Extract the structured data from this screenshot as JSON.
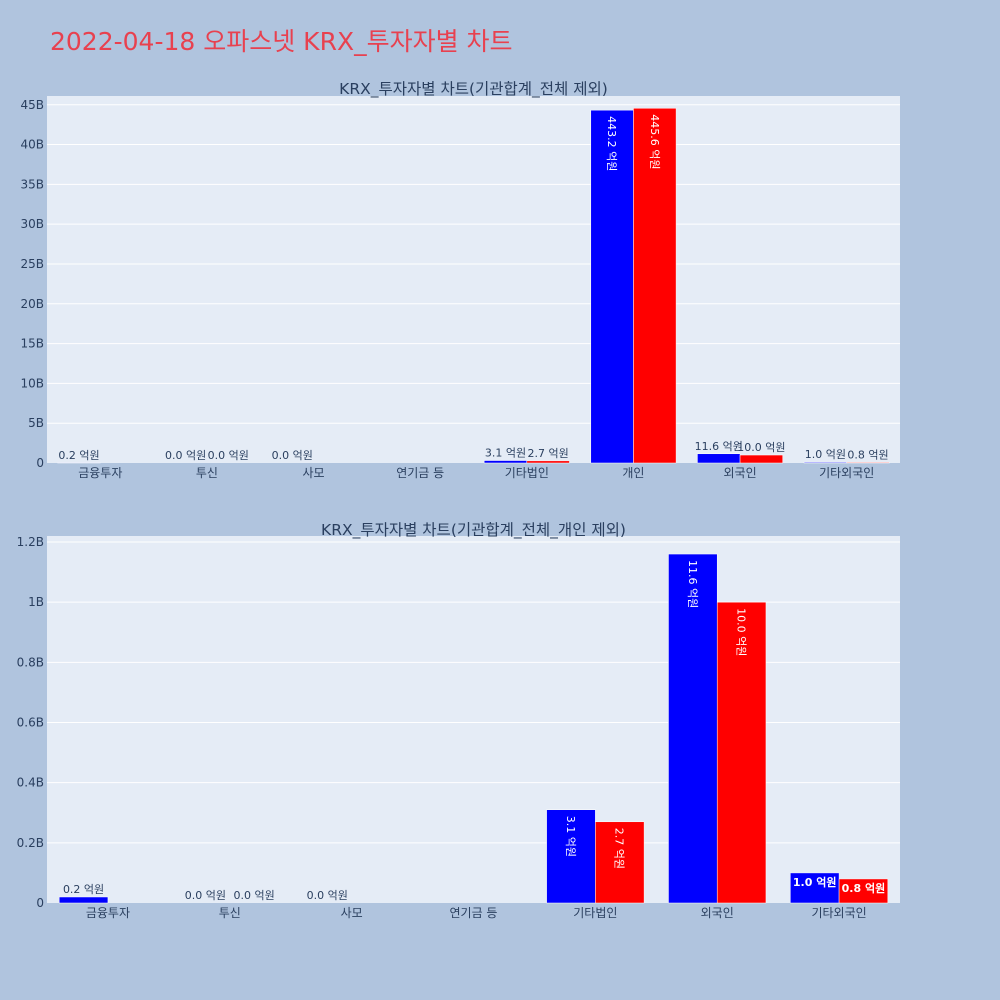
{
  "page": {
    "title": "2022-04-18 오파스넷 KRX_투자자별 차트"
  },
  "colors": {
    "buy": "#0000ff",
    "sell": "#ff0000",
    "plot_bg": "#e5ecf6",
    "page_bg": "#b0c4de",
    "title": "#e8414f",
    "text": "#2a3f5f"
  },
  "chart_data": [
    {
      "type": "bar",
      "title": "KRX_투자자별 차트(기관합계_전체 제외)",
      "categories": [
        "금융투자",
        "투신",
        "사모",
        "연기금 등",
        "기타법인",
        "개인",
        "외국인",
        "기타외국인"
      ],
      "series": [
        {
          "values": [
            20000000,
            0,
            0,
            0,
            310000000,
            44320000000,
            1160000000,
            100000000
          ],
          "labels": [
            "0.2 억원",
            "0.0 억원",
            "0.0 억원",
            "",
            "3.1 억원",
            "443.2 억원",
            "11.6 억원",
            "1.0 억원"
          ]
        },
        {
          "values": [
            0,
            0,
            0,
            0,
            270000000,
            44560000000,
            1000000000,
            80000000
          ],
          "labels": [
            "",
            "0.0 억원",
            "",
            "",
            "2.7 억원",
            "445.6 억원",
            "10.0 억원",
            "0.8 억원"
          ]
        }
      ],
      "yticks": [
        0,
        5000000000,
        10000000000,
        15000000000,
        20000000000,
        25000000000,
        30000000000,
        35000000000,
        40000000000,
        45000000000
      ],
      "ytick_labels": [
        "0",
        "5B",
        "10B",
        "15B",
        "20B",
        "25B",
        "30B",
        "35B",
        "40B",
        "45B"
      ],
      "ylim": [
        0,
        46100000000
      ],
      "grid": true
    },
    {
      "type": "bar",
      "title": "KRX_투자자별 차트(기관합계_전체_개인 제외)",
      "categories": [
        "금융투자",
        "투신",
        "사모",
        "연기금 등",
        "기타법인",
        "외국인",
        "기타외국인"
      ],
      "series": [
        {
          "values": [
            20000000,
            0,
            0,
            0,
            310000000,
            1160000000,
            100000000
          ],
          "labels": [
            "0.2 억원",
            "0.0 억원",
            "0.0 억원",
            "",
            "3.1 억원",
            "11.6 억원",
            "1.0 억원"
          ]
        },
        {
          "values": [
            0,
            0,
            0,
            0,
            270000000,
            1000000000,
            80000000
          ],
          "labels": [
            "",
            "0.0 억원",
            "",
            "",
            "2.7 억원",
            "10.0 억원",
            "0.8 억원"
          ]
        }
      ],
      "yticks": [
        0,
        200000000,
        400000000,
        600000000,
        800000000,
        1000000000,
        1200000000
      ],
      "ytick_labels": [
        "0",
        "0.2B",
        "0.4B",
        "0.6B",
        "0.8B",
        "1B",
        "1.2B"
      ],
      "ylim": [
        0,
        1220000000
      ],
      "grid": true
    }
  ]
}
